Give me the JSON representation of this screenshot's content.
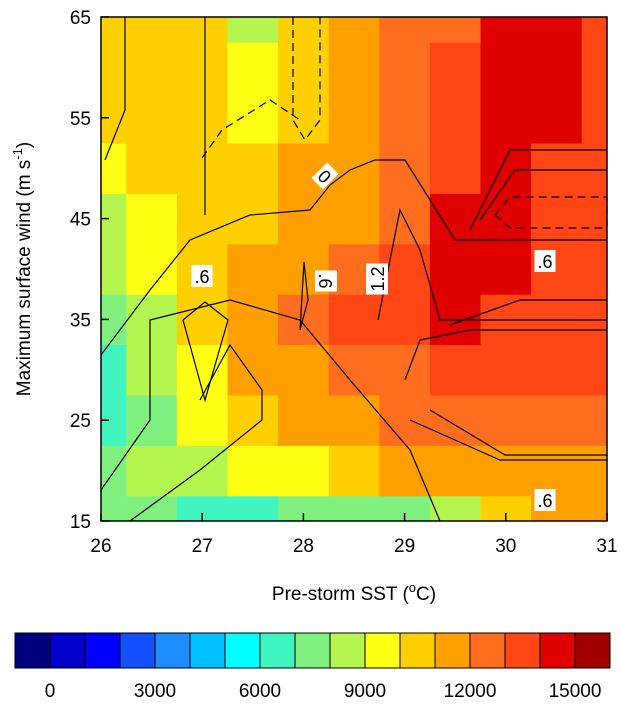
{
  "chart_data": {
    "type": "contour",
    "xlabel": {
      "text": "Pre-storm SST (",
      "sup": "o",
      "end": "C)"
    },
    "ylabel": {
      "text": "Maximum surface wind (m s",
      "sup": "-1",
      "end": ")"
    },
    "xlim": [
      26,
      31
    ],
    "ylim": [
      15,
      65
    ],
    "xticks": [
      26,
      27,
      28,
      29,
      30,
      31
    ],
    "yticks": [
      15,
      25,
      35,
      45,
      55,
      65
    ],
    "x": [
      26,
      26.5,
      27,
      27.5,
      28,
      28.5,
      29,
      29.5,
      30,
      30.5,
      31
    ],
    "y": [
      15,
      20,
      25,
      30,
      35,
      40,
      45,
      50,
      55,
      60,
      65
    ],
    "z": [
      [
        7500,
        7500,
        6500,
        6500,
        7500,
        7500,
        7500,
        8500,
        10500,
        11500,
        11500
      ],
      [
        7500,
        8500,
        8500,
        9500,
        9500,
        10500,
        11500,
        11500,
        11500,
        11500,
        11500
      ],
      [
        6500,
        7500,
        9500,
        10500,
        11500,
        11500,
        12500,
        12500,
        12500,
        12500,
        12500
      ],
      [
        6500,
        8500,
        9500,
        11500,
        11500,
        12500,
        12500,
        13500,
        13500,
        13500,
        13500
      ],
      [
        7500,
        8500,
        10500,
        11500,
        12500,
        13500,
        13500,
        14500,
        13500,
        13500,
        13500
      ],
      [
        8500,
        9500,
        10500,
        11500,
        11500,
        12500,
        13500,
        14500,
        14500,
        13500,
        13500
      ],
      [
        8500,
        9500,
        10500,
        10500,
        11500,
        11500,
        12500,
        14500,
        14500,
        13500,
        13500
      ],
      [
        9500,
        10500,
        10500,
        10500,
        11500,
        11500,
        12500,
        13500,
        14500,
        13500,
        13500
      ],
      [
        10500,
        10500,
        10500,
        9500,
        10500,
        11500,
        12500,
        13500,
        14500,
        14500,
        13500
      ],
      [
        10500,
        10500,
        10500,
        9500,
        10500,
        11500,
        12500,
        13500,
        14500,
        14500,
        13500
      ],
      [
        10500,
        10500,
        10500,
        8500,
        10500,
        11500,
        12500,
        12500,
        14500,
        14500,
        13500
      ]
    ],
    "levels": [
      0,
      1000,
      2000,
      3000,
      4000,
      5000,
      6000,
      7000,
      8000,
      9000,
      10000,
      11000,
      12000,
      13000,
      14000,
      15000
    ],
    "colors": [
      "#00007f",
      "#0000c8",
      "#0000ff",
      "#1450ff",
      "#1e8cff",
      "#00c0ff",
      "#00ffff",
      "#40f5c0",
      "#80f080",
      "#b4f550",
      "#ffff14",
      "#ffd000",
      "#ffa000",
      "#ff6e1e",
      "#ff4614",
      "#e00000",
      "#a00000"
    ],
    "colorbar_ticks": [
      0,
      3000,
      6000,
      9000,
      12000,
      15000
    ],
    "contour_labels": [
      "0",
      ".6",
      ".6",
      "1.2",
      ".6",
      ".6"
    ]
  }
}
